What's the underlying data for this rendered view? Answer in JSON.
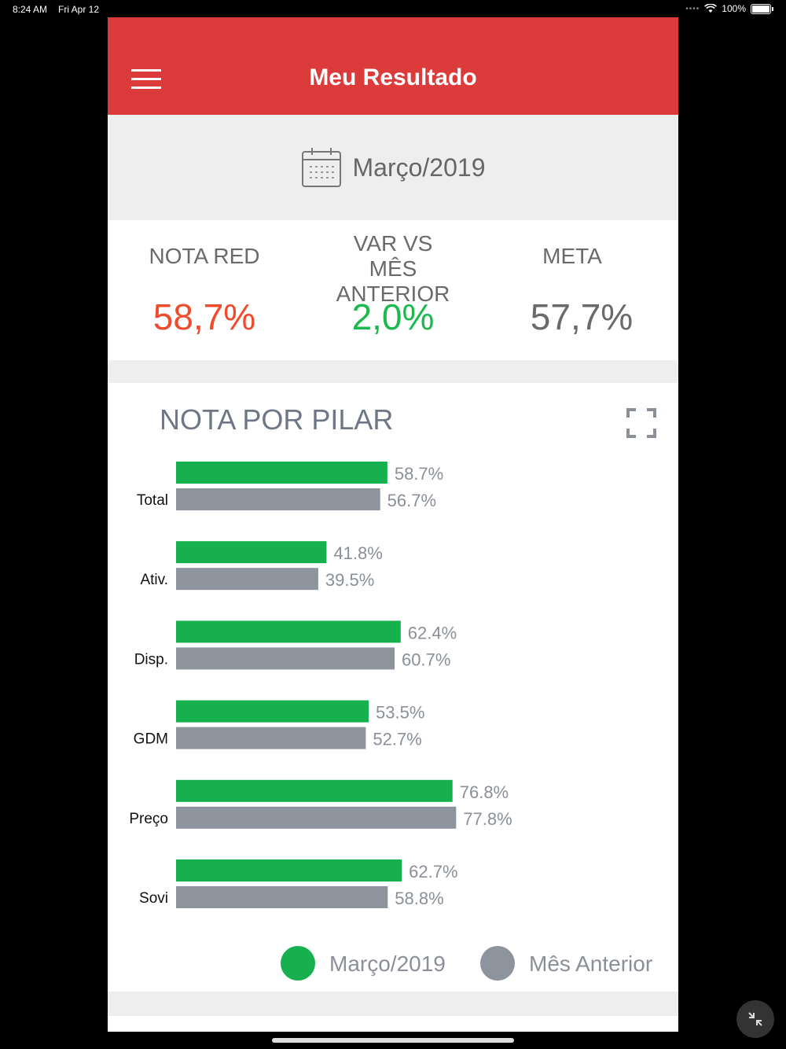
{
  "status_bar": {
    "time": "8:24 AM",
    "date": "Fri Apr 12",
    "battery": "100%"
  },
  "header": {
    "title": "Meu Resultado"
  },
  "period": {
    "label": "Março/2019"
  },
  "kpis": [
    {
      "label": "NOTA RED",
      "value": "58,7%",
      "color": "#f04b2c"
    },
    {
      "label": "VAR VS MÊS ANTERIOR",
      "value": "2,0%",
      "color": "#1aba4e"
    },
    {
      "label": "META",
      "value": "57,7%",
      "color": "#6a6a6a"
    }
  ],
  "chart_section": {
    "title": "NOTA POR PILAR"
  },
  "chart_data": {
    "type": "bar",
    "orientation": "horizontal",
    "categories": [
      "Total",
      "Ativ.",
      "Disp.",
      "GDM",
      "Preço",
      "Sovi"
    ],
    "series": [
      {
        "name": "Março/2019",
        "color": "#17b04e",
        "values": [
          58.7,
          41.8,
          62.4,
          53.5,
          76.8,
          62.7
        ],
        "labels": [
          "58.7%",
          "41.8%",
          "62.4%",
          "53.5%",
          "76.8%",
          "62.7%"
        ]
      },
      {
        "name": "Mês Anterior",
        "color": "#8e949e",
        "values": [
          56.7,
          39.5,
          60.7,
          52.7,
          77.8,
          58.8
        ],
        "labels": [
          "56.7%",
          "39.5%",
          "60.7%",
          "52.7%",
          "77.8%",
          "58.8%"
        ]
      }
    ],
    "xlim": [
      0,
      100
    ],
    "legend": "bottom-right"
  }
}
